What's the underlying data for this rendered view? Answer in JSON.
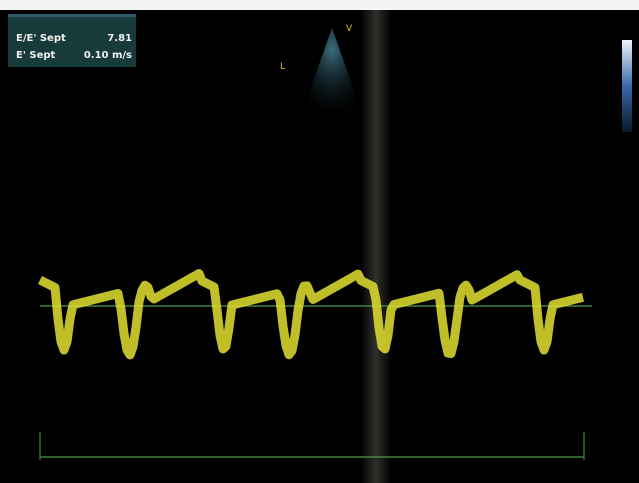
{
  "measurements": {
    "rows": [
      {
        "label": "E/E' Sept",
        "value": "7.81"
      },
      {
        "label": "E' Sept",
        "value": "0.10 m/s"
      }
    ]
  },
  "probe_markers": [
    "V",
    "L"
  ]
}
